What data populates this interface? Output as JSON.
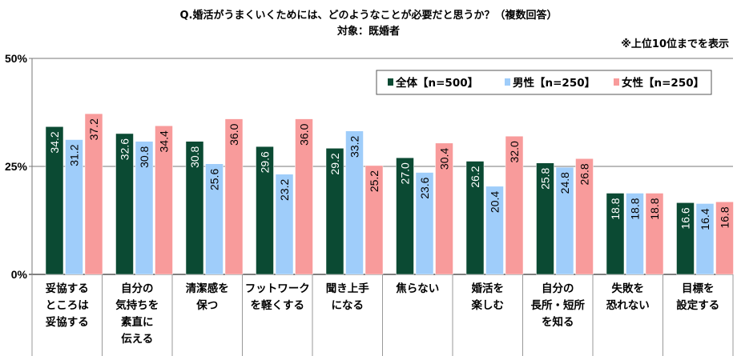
{
  "chart_data": {
    "type": "bar",
    "title": "Q.婚活がうまくいくためには、どのようなことが必要だと思うか？（複数回答）",
    "subtitle": "対象：既婚者",
    "note": "※上位10位までを表示",
    "xlabel": "",
    "ylabel": "",
    "ylim": [
      0,
      50
    ],
    "yticks": [
      "0%",
      "25%",
      "50%"
    ],
    "yticks_values": [
      0,
      25,
      50
    ],
    "grid": true,
    "legend_position": "top-right",
    "categories": [
      [
        "妥協する",
        "ところは",
        "妥協する"
      ],
      [
        "自分の",
        "気持ちを",
        "素直に",
        "伝える"
      ],
      [
        "清潔感を",
        "保つ"
      ],
      [
        "フットワーク",
        "を軽くする"
      ],
      [
        "聞き上手",
        "になる"
      ],
      [
        "焦らない"
      ],
      [
        "婚活を",
        "楽しむ"
      ],
      [
        "自分の",
        "長所・短所",
        "を知る"
      ],
      [
        "失敗を",
        "恐れない"
      ],
      [
        "目標を",
        "設定する"
      ]
    ],
    "series": [
      {
        "name": "全体【n=500】",
        "color": "#0b4a33",
        "label_color": "#ffffff",
        "values": [
          34.2,
          32.6,
          30.8,
          29.6,
          29.2,
          27.0,
          26.2,
          25.8,
          18.8,
          16.6
        ]
      },
      {
        "name": "男性【n=250】",
        "color": "#9fcdfa",
        "label_color": "#000000",
        "values": [
          31.2,
          30.8,
          25.6,
          23.2,
          33.2,
          23.6,
          20.4,
          24.8,
          18.8,
          16.4
        ]
      },
      {
        "name": "女性【n=250】",
        "color": "#f89b9b",
        "label_color": "#000000",
        "values": [
          37.2,
          34.4,
          36.0,
          36.0,
          25.2,
          30.4,
          32.0,
          26.8,
          18.8,
          16.8
        ]
      }
    ]
  }
}
